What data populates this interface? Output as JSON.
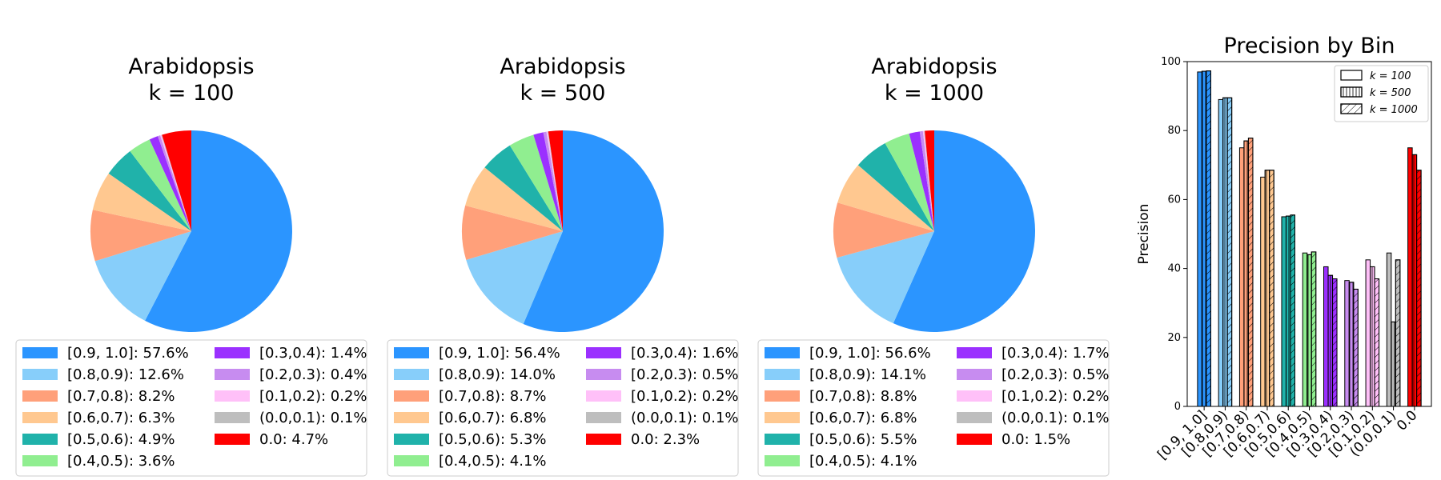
{
  "colors": [
    "#2b95ff",
    "#87cefa",
    "#ffa07a",
    "#ffc890",
    "#20b2aa",
    "#90ee90",
    "#9b30ff",
    "#c78cf0",
    "#ffc0f8",
    "#bebebe",
    "#ff0000"
  ],
  "chart_data": [
    {
      "type": "pie",
      "title": "Arabidopsis",
      "subtitle_text": "k = 100",
      "categories": [
        "[0.9, 1.0]",
        "[0.8,0.9)",
        "[0.7,0.8)",
        "[0.6,0.7)",
        "[0.5,0.6)",
        "[0.4,0.5)",
        "[0.3,0.4)",
        "[0.2,0.3)",
        "[0.1,0.2)",
        "(0.0,0.1)",
        "0.0"
      ],
      "values": [
        57.6,
        12.6,
        8.2,
        6.3,
        4.9,
        3.6,
        1.4,
        0.4,
        0.2,
        0.1,
        4.7
      ],
      "legend": [
        "[0.9, 1.0]: 57.6%",
        "[0.8,0.9): 12.6%",
        "[0.7,0.8): 8.2%",
        "[0.6,0.7): 6.3%",
        "[0.5,0.6): 4.9%",
        "[0.4,0.5): 3.6%",
        "[0.3,0.4): 1.4%",
        "[0.2,0.3): 0.4%",
        "[0.1,0.2): 0.2%",
        "(0.0,0.1): 0.1%",
        "0.0: 4.7%"
      ]
    },
    {
      "type": "pie",
      "title": "Arabidopsis",
      "subtitle_text": "k = 500",
      "categories": [
        "[0.9, 1.0]",
        "[0.8,0.9)",
        "[0.7,0.8)",
        "[0.6,0.7)",
        "[0.5,0.6)",
        "[0.4,0.5)",
        "[0.3,0.4)",
        "[0.2,0.3)",
        "[0.1,0.2)",
        "(0.0,0.1)",
        "0.0"
      ],
      "values": [
        56.4,
        14.0,
        8.7,
        6.8,
        5.3,
        4.1,
        1.6,
        0.5,
        0.2,
        0.1,
        2.3
      ],
      "legend": [
        "[0.9, 1.0]: 56.4%",
        "[0.8,0.9): 14.0%",
        "[0.7,0.8): 8.7%",
        "[0.6,0.7): 6.8%",
        "[0.5,0.6): 5.3%",
        "[0.4,0.5): 4.1%",
        "[0.3,0.4): 1.6%",
        "[0.2,0.3): 0.5%",
        "[0.1,0.2): 0.2%",
        "(0.0,0.1): 0.1%",
        "0.0: 2.3%"
      ]
    },
    {
      "type": "pie",
      "title": "Arabidopsis",
      "subtitle_text": "k = 1000",
      "categories": [
        "[0.9, 1.0]",
        "[0.8,0.9)",
        "[0.7,0.8)",
        "[0.6,0.7)",
        "[0.5,0.6)",
        "[0.4,0.5)",
        "[0.3,0.4)",
        "[0.2,0.3)",
        "[0.1,0.2)",
        "(0.0,0.1)",
        "0.0"
      ],
      "values": [
        56.6,
        14.1,
        8.8,
        6.8,
        5.5,
        4.1,
        1.7,
        0.5,
        0.2,
        0.1,
        1.5
      ],
      "legend": [
        "[0.9, 1.0]: 56.6%",
        "[0.8,0.9): 14.1%",
        "[0.7,0.8): 8.8%",
        "[0.6,0.7): 6.8%",
        "[0.5,0.6): 5.5%",
        "[0.4,0.5): 4.1%",
        "[0.3,0.4): 1.7%",
        "[0.2,0.3): 0.5%",
        "[0.1,0.2): 0.2%",
        "(0.0,0.1): 0.1%",
        "0.0: 1.5%"
      ]
    },
    {
      "type": "bar",
      "title": "Precision by Bin",
      "ylabel": "Precision",
      "xlabel": "",
      "ylim": [
        0,
        100
      ],
      "yticks": [
        0,
        20,
        40,
        60,
        80,
        100
      ],
      "categories": [
        "[0.9, 1.0]",
        "[0.8,0.9)",
        "[0.7,0.8)",
        "[0.6,0.7)",
        "[0.5,0.6)",
        "[0.4,0.5)",
        "[0.3,0.4)",
        "[0.2,0.3)",
        "[0.1,0.2)",
        "(0.0,0.1)",
        "0.0"
      ],
      "series": [
        {
          "name": "k = 100",
          "hatch": "none",
          "values": [
            97.0,
            89.0,
            75.0,
            66.5,
            55.0,
            44.5,
            40.5,
            36.5,
            42.5,
            44.5,
            75.0
          ]
        },
        {
          "name": "k = 500",
          "hatch": "vertical",
          "values": [
            97.2,
            89.5,
            77.0,
            68.5,
            55.2,
            44.0,
            38.0,
            36.0,
            40.5,
            24.5,
            73.0
          ]
        },
        {
          "name": "k = 1000",
          "hatch": "diagonal",
          "values": [
            97.3,
            89.5,
            77.8,
            68.5,
            55.5,
            44.8,
            37.0,
            34.0,
            37.0,
            42.5,
            68.5
          ]
        }
      ],
      "legend_position": "top-right",
      "grid": false
    }
  ]
}
